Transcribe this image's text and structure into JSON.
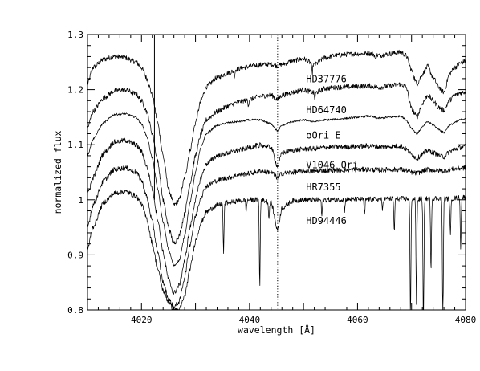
{
  "chart_data": {
    "type": "line",
    "title": "",
    "xlabel": "wavelength [Å]",
    "ylabel": "normalized flux",
    "xlim": [
      4010,
      4080
    ],
    "ylim": [
      0.8,
      1.3
    ],
    "x_ticks": [
      4020,
      4040,
      4060,
      4080
    ],
    "x_tick_labels": [
      "4020",
      "4040",
      "4060",
      "4080"
    ],
    "y_ticks": [
      0.8,
      0.9,
      1.0,
      1.1,
      1.2,
      1.3
    ],
    "y_tick_labels": [
      "0.8",
      "0.9",
      "1",
      "1.1",
      "1.2",
      "1.3"
    ],
    "grid": false,
    "markers": [
      {
        "kind": "dotted-vertical",
        "x": 4045.2
      },
      {
        "kind": "solid-vertical",
        "x": 4022.4
      }
    ],
    "series": [
      {
        "name": "HD37776",
        "label": "HD37776",
        "color": "#000000",
        "x": [
          4010,
          4011,
          4013,
          4015,
          4017,
          4019,
          4020,
          4021,
          4022,
          4023,
          4024,
          4025,
          4026,
          4027,
          4028,
          4029,
          4030,
          4031,
          4032,
          4034,
          4036,
          4038,
          4040,
          4042,
          4044,
          4045.2,
          4046,
          4048,
          4050,
          4052,
          4054,
          4056,
          4058,
          4060,
          4062,
          4064,
          4066,
          4068,
          4069,
          4070,
          4071,
          4072,
          4073,
          4074,
          4075,
          4076,
          4077,
          4078,
          4079,
          4080
        ],
        "y": [
          1.21,
          1.24,
          1.255,
          1.26,
          1.258,
          1.25,
          1.24,
          1.22,
          1.19,
          1.14,
          1.08,
          1.02,
          0.99,
          1.0,
          1.04,
          1.09,
          1.14,
          1.18,
          1.205,
          1.222,
          1.23,
          1.238,
          1.242,
          1.245,
          1.246,
          1.243,
          1.246,
          1.252,
          1.256,
          1.245,
          1.258,
          1.262,
          1.264,
          1.265,
          1.266,
          1.262,
          1.265,
          1.268,
          1.262,
          1.235,
          1.21,
          1.228,
          1.242,
          1.222,
          1.205,
          1.195,
          1.228,
          1.24,
          1.248,
          1.252
        ],
        "narrow_dips": [
          {
            "x": 4037.2,
            "depth": 0.012
          },
          {
            "x": 4051.6,
            "depth": 0.018
          },
          {
            "x": 4063.3,
            "depth": 0.01
          }
        ]
      },
      {
        "name": "HD64740",
        "label": "HD64740",
        "color": "#000000",
        "x": [
          4010,
          4011,
          4013,
          4015,
          4017,
          4019,
          4020,
          4021,
          4022,
          4023,
          4024,
          4025,
          4026,
          4027,
          4028,
          4029,
          4030,
          4031,
          4032,
          4034,
          4036,
          4038,
          4040,
          4042,
          4044,
          4045.2,
          4046,
          4048,
          4050,
          4052,
          4054,
          4056,
          4058,
          4060,
          4062,
          4064,
          4066,
          4068,
          4069,
          4070,
          4071,
          4072,
          4073,
          4074,
          4075,
          4076,
          4077,
          4078,
          4079,
          4080
        ],
        "y": [
          1.13,
          1.16,
          1.185,
          1.198,
          1.2,
          1.192,
          1.18,
          1.16,
          1.12,
          1.07,
          1.0,
          0.95,
          0.92,
          0.935,
          0.975,
          1.03,
          1.08,
          1.12,
          1.145,
          1.16,
          1.17,
          1.178,
          1.182,
          1.188,
          1.19,
          1.182,
          1.19,
          1.195,
          1.2,
          1.194,
          1.202,
          1.204,
          1.205,
          1.206,
          1.207,
          1.204,
          1.207,
          1.21,
          1.205,
          1.165,
          1.15,
          1.175,
          1.19,
          1.18,
          1.168,
          1.162,
          1.18,
          1.19,
          1.194,
          1.196
        ],
        "narrow_dips": [
          {
            "x": 4039.8,
            "depth": 0.01
          },
          {
            "x": 4052.1,
            "depth": 0.012
          }
        ]
      },
      {
        "name": "σOri E",
        "label": "σOri E",
        "color": "#000000",
        "x": [
          4010,
          4011,
          4013,
          4015,
          4017,
          4019,
          4020,
          4021,
          4022,
          4023,
          4024,
          4025,
          4026,
          4027,
          4028,
          4029,
          4030,
          4031,
          4032,
          4034,
          4036,
          4038,
          4040,
          4042,
          4044,
          4045.2,
          4046,
          4048,
          4050,
          4052,
          4054,
          4056,
          4058,
          4060,
          4062,
          4064,
          4066,
          4068,
          4069,
          4070,
          4071,
          4072,
          4073,
          4074,
          4075,
          4076,
          4077,
          4078,
          4079,
          4080
        ],
        "y": [
          1.08,
          1.11,
          1.14,
          1.155,
          1.156,
          1.15,
          1.138,
          1.115,
          1.075,
          1.02,
          0.96,
          0.91,
          0.88,
          0.89,
          0.935,
          0.995,
          1.05,
          1.095,
          1.12,
          1.135,
          1.14,
          1.142,
          1.145,
          1.145,
          1.138,
          1.125,
          1.135,
          1.142,
          1.145,
          1.142,
          1.145,
          1.146,
          1.148,
          1.15,
          1.152,
          1.148,
          1.15,
          1.152,
          1.145,
          1.13,
          1.12,
          1.132,
          1.142,
          1.136,
          1.128,
          1.122,
          1.135,
          1.14,
          1.145,
          1.148
        ],
        "narrow_dips": []
      },
      {
        "name": "V1046 Ori",
        "label": "V1046 Ori",
        "color": "#000000",
        "x": [
          4010,
          4011,
          4013,
          4015,
          4017,
          4019,
          4020,
          4021,
          4022,
          4023,
          4024,
          4025,
          4026,
          4027,
          4028,
          4029,
          4030,
          4031,
          4032,
          4034,
          4036,
          4038,
          4040,
          4042,
          4044,
          4045.2,
          4046,
          4048,
          4050,
          4052,
          4054,
          4056,
          4058,
          4060,
          4062,
          4064,
          4066,
          4068,
          4069,
          4070,
          4071,
          4072,
          4073,
          4074,
          4075,
          4076,
          4077,
          4078,
          4079,
          4080
        ],
        "y": [
          1.01,
          1.04,
          1.085,
          1.105,
          1.108,
          1.1,
          1.088,
          1.06,
          1.02,
          0.965,
          0.905,
          0.855,
          0.83,
          0.845,
          0.89,
          0.95,
          1.0,
          1.04,
          1.065,
          1.08,
          1.085,
          1.09,
          1.095,
          1.1,
          1.095,
          1.06,
          1.085,
          1.09,
          1.092,
          1.093,
          1.095,
          1.096,
          1.096,
          1.097,
          1.098,
          1.096,
          1.097,
          1.098,
          1.092,
          1.082,
          1.075,
          1.083,
          1.09,
          1.086,
          1.081,
          1.078,
          1.087,
          1.092,
          1.095,
          1.097
        ],
        "narrow_dips": [
          {
            "x": 4041.7,
            "depth": 0.008
          }
        ]
      },
      {
        "name": "HR7355",
        "label": "HR7355",
        "color": "#000000",
        "x": [
          4010,
          4011,
          4013,
          4015,
          4017,
          4019,
          4020,
          4021,
          4022,
          4023,
          4024,
          4025,
          4026,
          4027,
          4028,
          4029,
          4030,
          4031,
          4032,
          4034,
          4036,
          4038,
          4040,
          4042,
          4044,
          4045.2,
          4046,
          4048,
          4050,
          4052,
          4054,
          4056,
          4058,
          4060,
          4062,
          4064,
          4066,
          4068,
          4069,
          4070,
          4071,
          4072,
          4073,
          4074,
          4075,
          4076,
          4077,
          4078,
          4079,
          4080
        ],
        "y": [
          0.95,
          0.99,
          1.035,
          1.055,
          1.058,
          1.05,
          1.035,
          1.005,
          0.96,
          0.905,
          0.85,
          0.82,
          0.805,
          0.815,
          0.86,
          0.92,
          0.97,
          1.005,
          1.025,
          1.035,
          1.04,
          1.045,
          1.048,
          1.052,
          1.05,
          1.04,
          1.048,
          1.05,
          1.052,
          1.052,
          1.053,
          1.054,
          1.054,
          1.055,
          1.055,
          1.054,
          1.055,
          1.055,
          1.053,
          1.05,
          1.048,
          1.052,
          1.055,
          1.054,
          1.053,
          1.052,
          1.055,
          1.056,
          1.057,
          1.058
        ],
        "narrow_dips": []
      },
      {
        "name": "HD94446",
        "label": "HD94446",
        "color": "#000000",
        "x": [
          4010,
          4011,
          4013,
          4015,
          4017,
          4019,
          4020,
          4021,
          4022,
          4023,
          4024,
          4025,
          4026,
          4027,
          4028,
          4029,
          4030,
          4031,
          4032,
          4034,
          4036,
          4038,
          4040,
          4042,
          4044,
          4045.2,
          4046,
          4048,
          4050,
          4052,
          4054,
          4056,
          4058,
          4060,
          4062,
          4064,
          4066,
          4068,
          4069,
          4070,
          4071,
          4072,
          4073,
          4074,
          4075,
          4076,
          4077,
          4078,
          4079,
          4080
        ],
        "y": [
          0.91,
          0.95,
          0.995,
          1.012,
          1.015,
          1.007,
          0.992,
          0.965,
          0.92,
          0.875,
          0.835,
          0.815,
          0.8,
          0.8,
          0.825,
          0.875,
          0.925,
          0.958,
          0.978,
          0.99,
          0.995,
          0.998,
          1.0,
          1.0,
          0.995,
          0.945,
          0.985,
          0.998,
          1.0,
          1.0,
          1.0,
          1.0,
          1.001,
          1.001,
          1.001,
          1.001,
          1.002,
          1.002,
          1.002,
          1.002,
          1.001,
          1.002,
          1.002,
          1.003,
          1.003,
          1.002,
          1.002,
          1.003,
          1.004,
          1.005
        ],
        "narrow_dips": [
          {
            "x": 4035.2,
            "depth": 0.09
          },
          {
            "x": 4039.4,
            "depth": 0.02
          },
          {
            "x": 4041.9,
            "depth": 0.16
          },
          {
            "x": 4043.6,
            "depth": 0.03
          },
          {
            "x": 4053.4,
            "depth": 0.03
          },
          {
            "x": 4057.6,
            "depth": 0.02
          },
          {
            "x": 4061.3,
            "depth": 0.03
          },
          {
            "x": 4064.6,
            "depth": 0.02
          },
          {
            "x": 4066.8,
            "depth": 0.06
          },
          {
            "x": 4069.8,
            "depth": 0.22
          },
          {
            "x": 4070.9,
            "depth": 0.19
          },
          {
            "x": 4072.2,
            "depth": 0.26
          },
          {
            "x": 4073.6,
            "depth": 0.13
          },
          {
            "x": 4075.8,
            "depth": 0.24
          },
          {
            "x": 4077.2,
            "depth": 0.07
          },
          {
            "x": 4079.1,
            "depth": 0.09
          }
        ]
      }
    ]
  }
}
